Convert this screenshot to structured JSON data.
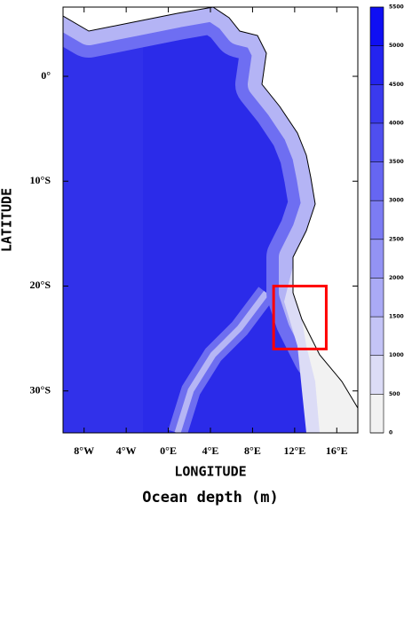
{
  "chart_data": {
    "type": "map",
    "title": "Ocean depth (m)",
    "xlabel": "LONGITUDE",
    "ylabel": "LATITUDE",
    "xlim": [
      -10,
      18
    ],
    "ylim": [
      -34,
      6.6
    ],
    "xticks": [
      {
        "value": -8,
        "label": "8°W"
      },
      {
        "value": -4,
        "label": "4°W"
      },
      {
        "value": 0,
        "label": "0°E"
      },
      {
        "value": 4,
        "label": "4°E"
      },
      {
        "value": 8,
        "label": "8°E"
      },
      {
        "value": 12,
        "label": "12°E"
      },
      {
        "value": 16,
        "label": "16°E"
      }
    ],
    "yticks": [
      {
        "value": 0,
        "label": "0°"
      },
      {
        "value": -10,
        "label": "10°S"
      },
      {
        "value": -20,
        "label": "20°S"
      },
      {
        "value": -30,
        "label": "30°S"
      }
    ],
    "highlight_box": {
      "xlim": [
        10,
        15
      ],
      "ylim": [
        -26,
        -20
      ],
      "color": "#ff0000"
    },
    "colorbar": {
      "lim": [
        0,
        5500
      ],
      "ticks": [
        0,
        500,
        1000,
        1500,
        2000,
        2500,
        3000,
        3500,
        4000,
        4500,
        5000,
        5500
      ],
      "colors": [
        "#f2f2f2",
        "#dcdcf6",
        "#c4c4f6",
        "#aaaaf5",
        "#9393f4",
        "#7c7cf3",
        "#6666f2",
        "#4f4fef",
        "#3a3aee",
        "#2424f0",
        "#0f0ff3"
      ]
    }
  }
}
